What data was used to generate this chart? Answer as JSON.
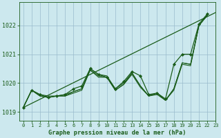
{
  "title": "Graphe pression niveau de la mer (hPa)",
  "bg_color": "#cce8ee",
  "grid_color": "#99bbcc",
  "line_color": "#1a5c1a",
  "xlim": [
    -0.5,
    23
  ],
  "ylim": [
    1018.7,
    1022.8
  ],
  "yticks": [
    1019,
    1020,
    1021,
    1022
  ],
  "xticks": [
    0,
    1,
    2,
    3,
    4,
    5,
    6,
    7,
    8,
    9,
    10,
    11,
    12,
    13,
    14,
    15,
    16,
    17,
    18,
    19,
    20,
    21,
    22,
    23
  ],
  "straight_line": [
    [
      0,
      23
    ],
    [
      1019.15,
      1022.45
    ]
  ],
  "wiggly_lines": [
    [
      1019.15,
      1019.75,
      1019.6,
      1019.55,
      1019.55,
      1019.55,
      1019.7,
      1019.8,
      1020.45,
      1020.2,
      1020.2,
      1019.75,
      1019.95,
      1020.35,
      1019.9,
      1019.55,
      1019.65,
      1019.4,
      1019.8,
      1020.7,
      1020.65,
      1022.0,
      1022.35
    ],
    [
      1019.15,
      1019.75,
      1019.55,
      1019.5,
      1019.55,
      1019.55,
      1019.65,
      1019.75,
      1020.45,
      1020.25,
      1020.2,
      1019.75,
      1019.95,
      1020.3,
      1019.85,
      1019.55,
      1019.6,
      1019.4,
      1019.75,
      1020.65,
      1020.6,
      1022.0,
      1022.35
    ],
    [
      1019.15,
      1019.75,
      1019.55,
      1019.5,
      1019.55,
      1019.6,
      1019.7,
      1019.8,
      1020.5,
      1020.3,
      1020.25,
      1019.8,
      1020.0,
      1020.35,
      1019.9,
      1019.55,
      1019.65,
      1019.4,
      1019.8,
      1020.7,
      1020.65,
      1022.0,
      1022.35
    ]
  ],
  "main_series": [
    1019.15,
    1019.75,
    1019.6,
    1019.5,
    1019.55,
    1019.6,
    1019.8,
    1019.9,
    1020.5,
    1020.3,
    1020.2,
    1019.8,
    1020.05,
    1020.4,
    1020.25,
    1019.6,
    1019.65,
    1019.45,
    1020.65,
    1021.0,
    1021.0,
    1022.05,
    1022.4
  ]
}
